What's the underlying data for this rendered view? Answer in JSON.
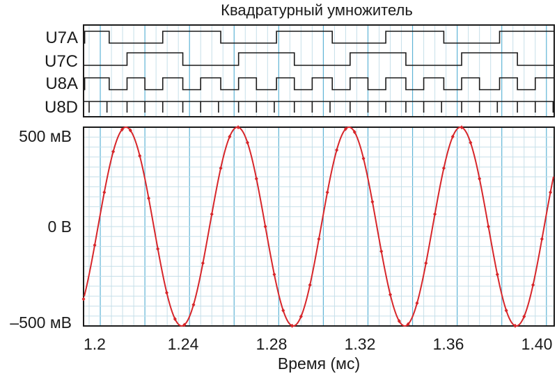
{
  "chart_data": [
    {
      "type": "line",
      "title": "Квадратурный умножитель",
      "panel": "digital",
      "series": [
        {
          "name": "U7A",
          "x": [
            1.19,
            1.193,
            1.204,
            1.228,
            1.254,
            1.279,
            1.304,
            1.328,
            1.354,
            1.379,
            1.404
          ],
          "values": [
            0,
            1,
            0,
            1,
            0,
            1,
            0,
            1,
            0,
            1,
            0
          ]
        },
        {
          "name": "U7C",
          "x": [
            1.19,
            1.212,
            1.237,
            1.262,
            1.287,
            1.312,
            1.337,
            1.362,
            1.387,
            1.404
          ],
          "values": [
            0,
            1,
            0,
            1,
            0,
            1,
            0,
            1,
            0,
            0
          ]
        },
        {
          "name": "U8A",
          "x": [
            1.19,
            1.193,
            1.204,
            1.212,
            1.22,
            1.228,
            1.237,
            1.245,
            1.254,
            1.262,
            1.27,
            1.279,
            1.287,
            1.295,
            1.304,
            1.312,
            1.32,
            1.328,
            1.337,
            1.345,
            1.354,
            1.362,
            1.37,
            1.379,
            1.387,
            1.395,
            1.404
          ],
          "values": [
            0,
            1,
            0,
            1,
            0,
            1,
            0,
            1,
            0,
            1,
            0,
            1,
            0,
            1,
            0,
            1,
            0,
            1,
            0,
            1,
            0,
            1,
            0,
            1,
            0,
            1,
            0
          ]
        },
        {
          "name": "U8D",
          "x": [
            1.195,
            1.203,
            1.212,
            1.22,
            1.228,
            1.237,
            1.245,
            1.253,
            1.262,
            1.27,
            1.278,
            1.287,
            1.295,
            1.303,
            1.312,
            1.32,
            1.328,
            1.337,
            1.345,
            1.353,
            1.362,
            1.37,
            1.378,
            1.387,
            1.395,
            1.403
          ],
          "values": [
            1,
            1,
            1,
            1,
            1,
            1,
            1,
            1,
            1,
            1,
            1,
            1,
            1,
            1,
            1,
            1,
            1,
            1,
            1,
            1,
            1,
            1,
            1,
            1,
            1,
            1
          ]
        }
      ]
    },
    {
      "type": "line",
      "panel": "analog",
      "xlabel": "Время (мс)",
      "ylabel": "",
      "x_ticks": [
        "1.2",
        "1.24",
        "1.28",
        "1.32",
        "1.36",
        "1.40"
      ],
      "x_tick_values": [
        1.2,
        1.24,
        1.28,
        1.32,
        1.36,
        1.4
      ],
      "y_ticks": [
        "500 мВ",
        "0 В",
        "–500 мВ"
      ],
      "y_tick_values": [
        500,
        0,
        -500
      ],
      "xlim": [
        1.1925,
        1.4035
      ],
      "ylim": [
        -500,
        500
      ],
      "grid": true,
      "series": [
        {
          "name": "",
          "sine": {
            "amplitude": 500,
            "period": 0.05,
            "phase_x": 1.2115
          },
          "x": [
            1.1925,
            1.1975,
            1.2018,
            1.2058,
            1.2098,
            1.2135,
            1.2177,
            1.2217,
            1.2258,
            1.2298,
            1.2335,
            1.2377,
            1.2418,
            1.246,
            1.25,
            1.254,
            1.258,
            1.2618,
            1.266,
            1.27,
            1.274,
            1.278,
            1.282,
            1.286,
            1.29,
            1.294,
            1.298,
            1.3018,
            1.306,
            1.31,
            1.314,
            1.318,
            1.322,
            1.326,
            1.33,
            1.334,
            1.338,
            1.342,
            1.346,
            1.35,
            1.354,
            1.358,
            1.362,
            1.366,
            1.37,
            1.374,
            1.378,
            1.382,
            1.386,
            1.39,
            1.394,
            1.398,
            1.4018
          ]
        }
      ]
    }
  ],
  "colors": {
    "waveform": "#d7262a",
    "grid_major": "#5fb4d6",
    "grid_minor": "#c6dfe9",
    "axes": "#1a1a1a",
    "digital": "#1a1a1a",
    "background": "#ffffff"
  }
}
